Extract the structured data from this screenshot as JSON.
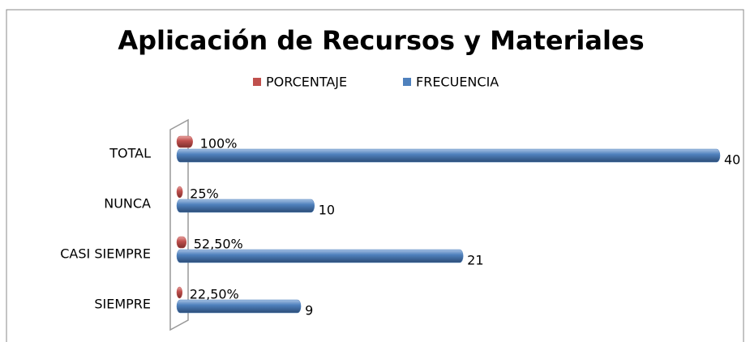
{
  "chart_data": {
    "type": "bar",
    "orientation": "horizontal",
    "title": "Aplicación de Recursos y Materiales",
    "categories": [
      "TOTAL",
      "NUNCA",
      "CASI SIEMPRE",
      "SIEMPRE"
    ],
    "series": [
      {
        "name": "PORCENTAJE",
        "color": "#c0504d",
        "values": [
          1,
          0.25,
          0.525,
          0.225
        ],
        "value_labels": [
          "100%",
          "25%",
          "52,50%",
          "22,50%"
        ]
      },
      {
        "name": "FRECUENCIA",
        "color": "#4f81bd",
        "values": [
          40,
          10,
          21,
          9
        ]
      }
    ],
    "xlim": [
      0,
      40
    ],
    "legend": "top"
  }
}
